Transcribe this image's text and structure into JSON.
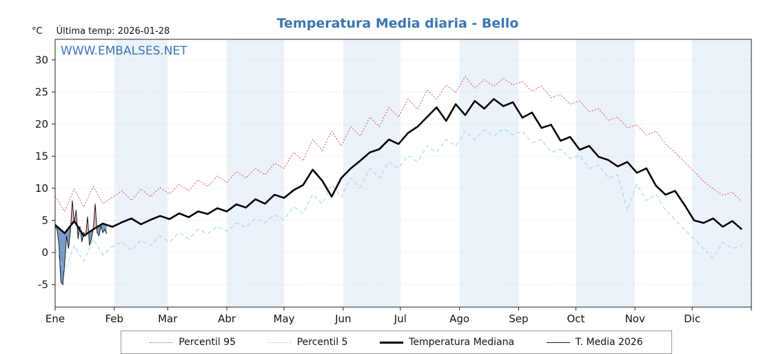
{
  "header": {
    "title": "Temperatura Media diaria - Bello",
    "y_unit": "°C",
    "last_temp": "Última temp: 2026-01-28",
    "watermark": "WWW.EMBALSES.NET"
  },
  "colors": {
    "title": "#3a76af",
    "watermark": "#3a74b8",
    "p95": "#d94c4c",
    "p5": "#a9d9ea",
    "median": "#000000",
    "t2026": "#1a1a1a",
    "band": "#ebf2f9",
    "grid": "#cccccc",
    "axis": "#222222",
    "fill_below": "#4a7db5",
    "fill_above": "#e8a0a0"
  },
  "chart_data": {
    "type": "line",
    "title": "Temperatura Media diaria - Bello",
    "xlabel_months": [
      "Ene",
      "Feb",
      "Mar",
      "Abr",
      "May",
      "Jun",
      "Jul",
      "Ago",
      "Sep",
      "Oct",
      "Nov",
      "Dic"
    ],
    "month_start_days": [
      1,
      32,
      60,
      91,
      121,
      152,
      182,
      213,
      244,
      274,
      305,
      335,
      366
    ],
    "yticks": [
      -5,
      0,
      5,
      10,
      15,
      20,
      25,
      30
    ],
    "ylim": [
      -5,
      30
    ],
    "x_days": [
      1,
      6,
      11,
      16,
      21,
      26,
      31,
      36,
      41,
      46,
      51,
      56,
      61,
      66,
      71,
      76,
      81,
      86,
      91,
      96,
      101,
      106,
      111,
      116,
      121,
      126,
      131,
      136,
      141,
      146,
      151,
      156,
      161,
      166,
      171,
      176,
      181,
      186,
      191,
      196,
      201,
      206,
      211,
      216,
      221,
      226,
      231,
      236,
      241,
      246,
      251,
      256,
      261,
      266,
      271,
      276,
      281,
      286,
      291,
      296,
      301,
      306,
      311,
      316,
      321,
      326,
      331,
      336,
      341,
      346,
      351,
      356,
      361
    ],
    "series": [
      {
        "name": "Percentil 95",
        "key": "p95",
        "style": "dotted",
        "values": [
          8.8,
          6.4,
          9.9,
          7.1,
          10.3,
          7.6,
          8.6,
          9.6,
          8.1,
          9.9,
          8.7,
          10.1,
          9.1,
          10.6,
          9.6,
          11.3,
          10.3,
          11.9,
          10.9,
          12.6,
          11.6,
          13.1,
          12.1,
          13.9,
          13.1,
          15.6,
          14.3,
          17.6,
          15.9,
          18.9,
          16.6,
          19.6,
          18.1,
          21.1,
          19.6,
          22.6,
          21.1,
          23.9,
          22.3,
          25.3,
          23.9,
          26.1,
          24.9,
          27.4,
          25.6,
          26.9,
          25.9,
          27.1,
          26.1,
          26.6,
          25.1,
          25.9,
          24.1,
          24.6,
          23.1,
          23.6,
          21.9,
          22.4,
          20.6,
          21.1,
          19.4,
          19.9,
          18.3,
          18.9,
          16.9,
          15.6,
          14.1,
          12.6,
          11.1,
          9.9,
          8.9,
          9.4,
          7.9
        ]
      },
      {
        "name": "Percentil 5",
        "key": "p5",
        "style": "dashed",
        "values": [
          0.6,
          -2.9,
          1.1,
          -1.4,
          2.1,
          -0.4,
          0.9,
          1.6,
          0.3,
          1.9,
          1.1,
          2.6,
          1.6,
          3.1,
          2.1,
          3.6,
          2.9,
          4.1,
          3.3,
          4.6,
          3.9,
          5.3,
          4.6,
          5.9,
          5.1,
          7.1,
          6.1,
          9.1,
          7.6,
          10.6,
          8.6,
          11.6,
          10.1,
          13.1,
          11.6,
          14.1,
          13.1,
          15.1,
          14.1,
          16.6,
          15.6,
          17.6,
          16.6,
          18.9,
          17.6,
          19.1,
          18.1,
          19.3,
          18.3,
          18.9,
          17.1,
          17.6,
          15.6,
          16.1,
          14.6,
          15.1,
          13.1,
          13.6,
          11.6,
          12.1,
          6.6,
          10.6,
          8.1,
          9.1,
          6.6,
          5.1,
          3.6,
          2.1,
          0.6,
          -0.9,
          1.6,
          0.6,
          1.1
        ]
      },
      {
        "name": "Temperatura Mediana",
        "key": "median",
        "style": "solid-thick",
        "values": [
          4.3,
          3.0,
          4.9,
          2.6,
          3.6,
          4.5,
          4.0,
          4.7,
          5.3,
          4.4,
          5.1,
          5.7,
          5.2,
          6.1,
          5.5,
          6.4,
          6.0,
          6.9,
          6.4,
          7.5,
          7.0,
          8.3,
          7.6,
          9.0,
          8.5,
          9.7,
          10.5,
          12.9,
          11.2,
          8.7,
          11.6,
          13.1,
          14.3,
          15.6,
          16.1,
          17.6,
          16.9,
          18.6,
          19.6,
          21.1,
          22.6,
          20.5,
          23.1,
          21.4,
          23.6,
          22.4,
          23.9,
          22.8,
          23.4,
          21.0,
          21.8,
          19.4,
          19.9,
          17.4,
          18.0,
          16.0,
          16.6,
          14.9,
          14.4,
          13.4,
          14.1,
          12.4,
          13.1,
          10.4,
          9.0,
          9.6,
          7.4,
          5.0,
          4.6,
          5.3,
          4.0,
          4.9,
          3.6
        ]
      },
      {
        "name": "T. Media 2026",
        "key": "t2026",
        "style": "solid-thin",
        "days": [
          1,
          2,
          3,
          4,
          5,
          6,
          7,
          8,
          9,
          10,
          11,
          12,
          13,
          14,
          15,
          16,
          17,
          18,
          19,
          20,
          21,
          22,
          23,
          24,
          25,
          26,
          27,
          28
        ],
        "values": [
          4.0,
          3.6,
          1.2,
          -4.6,
          -5.0,
          -1.8,
          2.6,
          0.6,
          3.2,
          8.1,
          4.6,
          6.6,
          2.1,
          4.1,
          1.6,
          3.1,
          2.6,
          5.6,
          1.1,
          2.1,
          3.6,
          7.6,
          3.1,
          2.6,
          4.1,
          3.1,
          3.6,
          2.9
        ]
      }
    ],
    "legend": [
      "Percentil 95",
      "Percentil 5",
      "Temperatura Mediana",
      "T. Media 2026"
    ]
  }
}
